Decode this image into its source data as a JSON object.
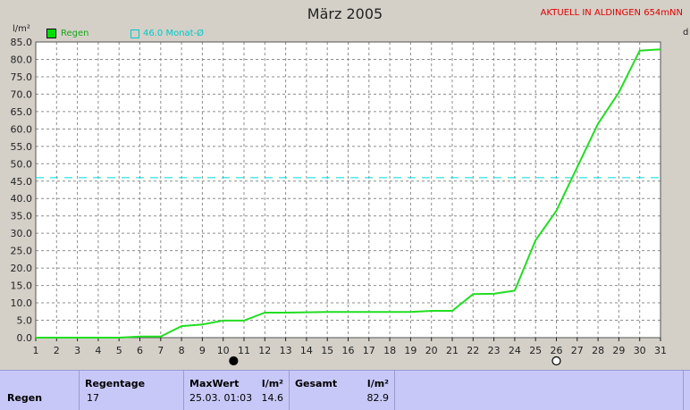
{
  "title": "März 2005",
  "station": "AKTUELL IN ALDINGEN 654mNN",
  "y_unit": "l/m²",
  "right_edge_text": "d",
  "legend": {
    "regen": "Regen",
    "avg": "46.0 Monat-Ø"
  },
  "colors": {
    "background": "#d4d0c8",
    "plot_bg": "#ffffff",
    "rain_line": "#22dd22",
    "avg_line": "#00d8d8",
    "panel": "#c8c8f8"
  },
  "icons": [
    "full-moon-icon",
    "new-moon-icon"
  ],
  "chart_data": {
    "type": "line",
    "title": "März 2005",
    "ylabel": "l/m²",
    "ylim": [
      0,
      85
    ],
    "xlim": [
      1,
      31
    ],
    "grid": true,
    "legend_position": "top-left",
    "x_ticks": [
      1,
      2,
      3,
      4,
      5,
      6,
      7,
      8,
      9,
      10,
      11,
      12,
      13,
      14,
      15,
      16,
      17,
      18,
      19,
      20,
      21,
      22,
      23,
      24,
      25,
      26,
      27,
      28,
      29,
      30,
      31
    ],
    "y_ticks": [
      "0.0",
      "5.0",
      "10.0",
      "15.0",
      "20.0",
      "25.0",
      "30.0",
      "35.0",
      "40.0",
      "45.0",
      "50.0",
      "55.0",
      "60.0",
      "65.0",
      "70.0",
      "75.0",
      "80.0",
      "85.0"
    ],
    "series": [
      {
        "name": "Regen",
        "x": [
          1,
          2,
          3,
          4,
          5,
          6,
          7,
          8,
          9,
          10,
          11,
          12,
          13,
          14,
          15,
          16,
          17,
          18,
          19,
          20,
          21,
          22,
          23,
          24,
          25,
          26,
          27,
          28,
          29,
          30,
          31
        ],
        "y": [
          0,
          0,
          0,
          0,
          0,
          0.3,
          0.3,
          3.3,
          3.8,
          4.9,
          4.9,
          7.2,
          7.2,
          7.3,
          7.4,
          7.4,
          7.4,
          7.4,
          7.4,
          7.7,
          7.7,
          12.5,
          12.6,
          13.5,
          28.0,
          36.5,
          49.0,
          61.5,
          70.5,
          82.5,
          82.9
        ]
      }
    ],
    "reference_line": {
      "name": "46.0 Monat-Ø",
      "y": 46.0
    },
    "markers": [
      {
        "icon": "full-moon-icon",
        "x": 10.5
      },
      {
        "icon": "new-moon-icon",
        "x": 26
      }
    ]
  },
  "summary": {
    "row_label": "Regen",
    "regentage_header": "Regentage",
    "regentage_value": "17",
    "maxwert_header": "MaxWert",
    "maxwert_unit": "l/m²",
    "maxwert_datetime": "25.03.  01:03",
    "maxwert_value": "14.6",
    "gesamt_header": "Gesamt",
    "gesamt_unit": "l/m²",
    "gesamt_value": "82.9"
  }
}
